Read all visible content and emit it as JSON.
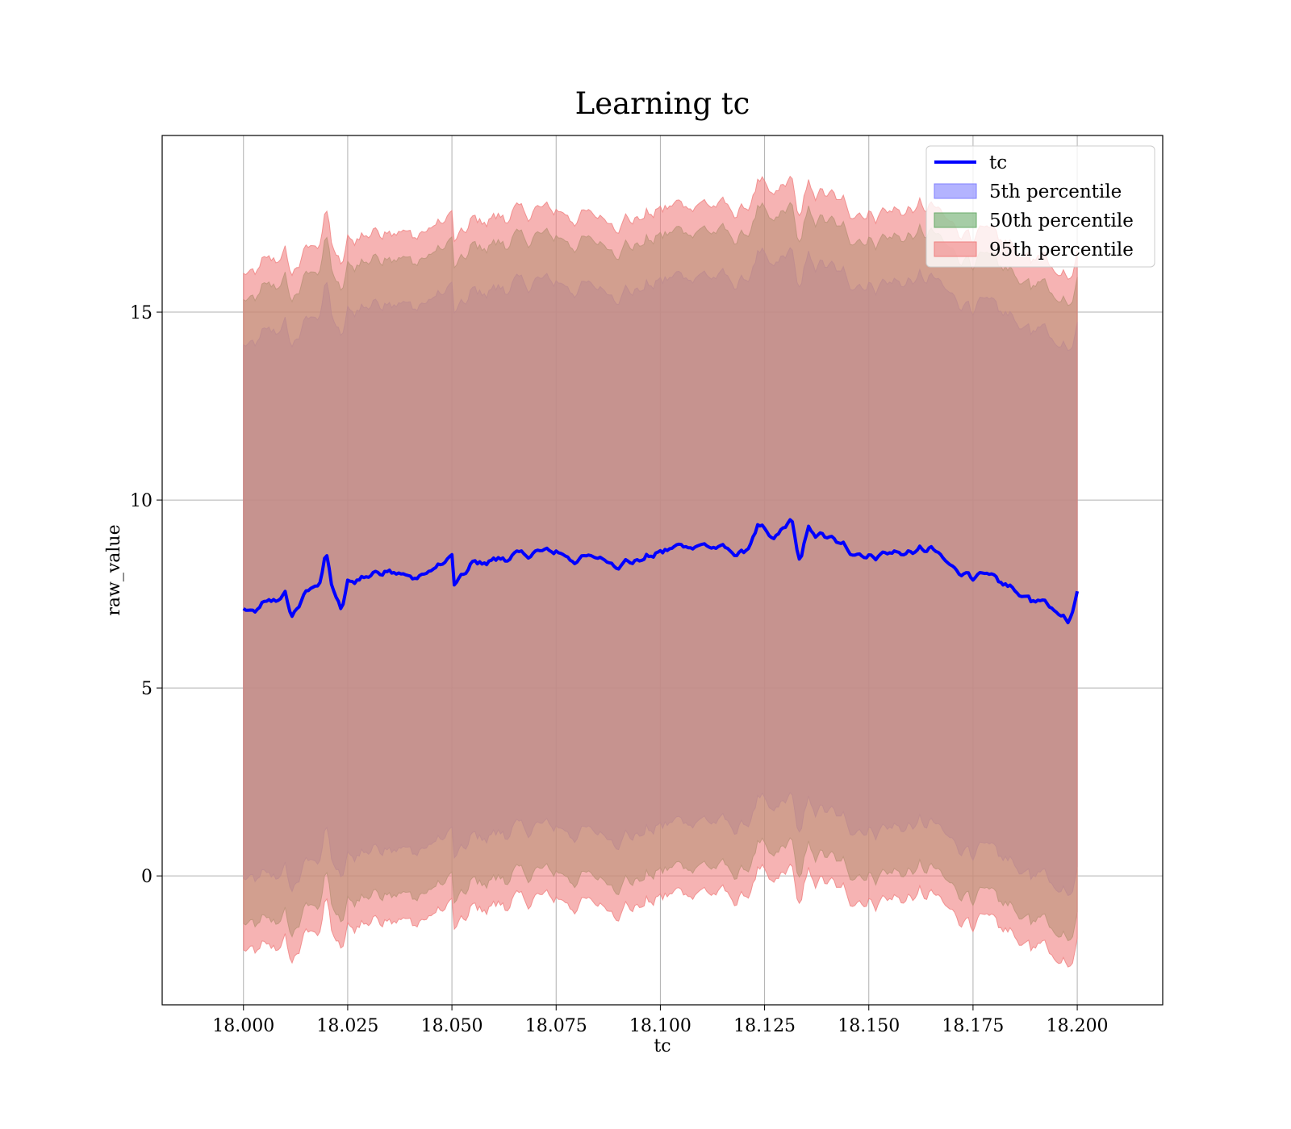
{
  "chart_data": {
    "type": "line",
    "title": "Learning tc",
    "xlabel": "tc",
    "ylabel": "raw_value",
    "xlim": [
      17.9805,
      18.2205
    ],
    "ylim": [
      -3.43,
      19.7
    ],
    "x_range": [
      18.0,
      18.2
    ],
    "x_ticks": [
      "18.000",
      "18.025",
      "18.050",
      "18.075",
      "18.100",
      "18.125",
      "18.150",
      "18.175",
      "18.200"
    ],
    "y_ticks": [
      "0",
      "5",
      "10",
      "15"
    ],
    "grid": true,
    "legend_position": "top-right",
    "series": [
      {
        "name": "tc",
        "kind": "line",
        "color": "#0000ff",
        "x": [
          18.0,
          18.002,
          18.006,
          18.01,
          18.0115,
          18.015,
          18.0185,
          18.0198,
          18.021,
          18.0235,
          18.025,
          18.03,
          18.035,
          18.04,
          18.045,
          18.05,
          18.0505,
          18.055,
          18.06,
          18.065,
          18.07,
          18.075,
          18.0795,
          18.085,
          18.09,
          18.095,
          18.1,
          18.105,
          18.11,
          18.115,
          18.12,
          18.1235,
          18.127,
          18.1315,
          18.1335,
          18.1355,
          18.14,
          18.145,
          18.15,
          18.155,
          18.16,
          18.165,
          18.17,
          18.175,
          18.18,
          18.185,
          18.19,
          18.195,
          18.1978,
          18.2
        ],
        "values": [
          7.1,
          6.95,
          7.3,
          7.45,
          6.9,
          7.5,
          7.9,
          8.6,
          7.8,
          7.0,
          7.8,
          8.0,
          8.2,
          7.9,
          8.1,
          8.5,
          7.7,
          8.3,
          8.4,
          8.5,
          8.6,
          8.65,
          8.4,
          8.5,
          8.3,
          8.4,
          8.6,
          8.8,
          8.8,
          8.7,
          8.55,
          9.3,
          8.9,
          9.5,
          8.3,
          9.2,
          9.0,
          8.7,
          8.5,
          8.6,
          8.6,
          8.7,
          8.2,
          8.0,
          7.9,
          7.6,
          7.3,
          7.1,
          6.7,
          7.6
        ]
      },
      {
        "name": "5th percentile",
        "kind": "band",
        "color": "#8080ff",
        "lower": [
          -0.1,
          -0.2,
          0.0,
          0.1,
          -0.4,
          0.3,
          0.6,
          1.3,
          0.5,
          -0.2,
          0.5,
          0.7,
          0.9,
          0.6,
          0.8,
          1.2,
          0.4,
          1.0,
          1.1,
          1.2,
          1.3,
          1.35,
          1.1,
          1.2,
          1.0,
          1.1,
          1.3,
          1.5,
          1.5,
          1.4,
          1.25,
          2.0,
          1.6,
          2.2,
          1.0,
          1.9,
          1.7,
          1.4,
          1.2,
          1.3,
          1.3,
          1.4,
          0.9,
          0.7,
          0.6,
          0.3,
          0.0,
          -0.2,
          -0.6,
          0.3
        ],
        "upper": [
          14.1,
          14.0,
          14.5,
          14.6,
          14.1,
          14.7,
          15.1,
          15.8,
          15.0,
          14.2,
          15.0,
          15.2,
          15.4,
          15.1,
          15.3,
          15.7,
          14.9,
          15.5,
          15.6,
          15.7,
          15.8,
          15.85,
          15.6,
          15.7,
          15.5,
          15.6,
          15.8,
          16.0,
          16.0,
          15.9,
          15.75,
          16.5,
          16.1,
          16.7,
          15.5,
          16.4,
          16.2,
          15.9,
          15.7,
          15.8,
          15.8,
          15.9,
          15.4,
          15.2,
          15.1,
          14.8,
          14.5,
          14.3,
          13.9,
          14.8
        ]
      },
      {
        "name": "50th percentile",
        "kind": "band",
        "color": "#6aab6a",
        "lower": [
          -1.3,
          -1.4,
          -1.2,
          -1.1,
          -1.6,
          -0.9,
          -0.6,
          0.1,
          -0.7,
          -1.4,
          -0.7,
          -0.5,
          -0.3,
          -0.6,
          -0.4,
          0.0,
          -0.8,
          -0.2,
          -0.1,
          0.0,
          0.1,
          0.15,
          -0.1,
          0.0,
          -0.2,
          -0.1,
          0.1,
          0.3,
          0.3,
          0.2,
          0.05,
          0.8,
          0.4,
          1.0,
          -0.2,
          0.7,
          0.5,
          0.2,
          0.0,
          0.1,
          0.1,
          0.2,
          -0.3,
          -0.5,
          -0.6,
          -0.9,
          -1.2,
          -1.4,
          -1.8,
          -0.9
        ],
        "upper": [
          15.3,
          15.2,
          15.7,
          15.8,
          15.3,
          15.9,
          16.3,
          17.0,
          16.2,
          15.4,
          16.2,
          16.4,
          16.6,
          16.3,
          16.5,
          16.9,
          16.1,
          16.7,
          16.8,
          16.9,
          17.0,
          17.05,
          16.8,
          16.9,
          16.7,
          16.8,
          17.0,
          17.2,
          17.2,
          17.1,
          16.95,
          17.7,
          17.3,
          17.9,
          16.7,
          17.6,
          17.4,
          17.1,
          16.9,
          17.0,
          17.0,
          17.1,
          16.6,
          16.4,
          16.3,
          16.0,
          15.7,
          15.5,
          15.1,
          16.0
        ]
      },
      {
        "name": "95th percentile",
        "kind": "band",
        "color": "#f08080",
        "lower": [
          -2.0,
          -2.1,
          -1.9,
          -1.8,
          -2.3,
          -1.6,
          -1.3,
          -0.6,
          -1.4,
          -2.1,
          -1.4,
          -1.2,
          -1.0,
          -1.3,
          -1.1,
          -0.7,
          -1.5,
          -0.9,
          -0.8,
          -0.7,
          -0.6,
          -0.55,
          -0.8,
          -0.7,
          -0.9,
          -0.8,
          -0.6,
          -0.4,
          -0.4,
          -0.5,
          -0.65,
          0.1,
          -0.3,
          0.3,
          -0.9,
          0.0,
          -0.2,
          -0.5,
          -0.7,
          -0.6,
          -0.6,
          -0.5,
          -1.0,
          -1.2,
          -1.3,
          -1.6,
          -1.9,
          -2.1,
          -2.5,
          -1.6
        ],
        "upper": [
          16.0,
          15.9,
          16.4,
          16.5,
          16.0,
          16.6,
          17.0,
          17.7,
          16.9,
          16.1,
          16.9,
          17.1,
          17.3,
          17.0,
          17.2,
          17.6,
          16.8,
          17.4,
          17.5,
          17.6,
          17.7,
          17.75,
          17.5,
          17.6,
          17.4,
          17.5,
          17.7,
          17.9,
          17.9,
          17.8,
          17.65,
          18.4,
          18.0,
          18.6,
          17.4,
          18.3,
          18.1,
          17.8,
          17.6,
          17.7,
          17.7,
          17.8,
          17.3,
          17.1,
          17.0,
          16.7,
          16.4,
          16.2,
          15.8,
          16.7
        ]
      }
    ]
  }
}
